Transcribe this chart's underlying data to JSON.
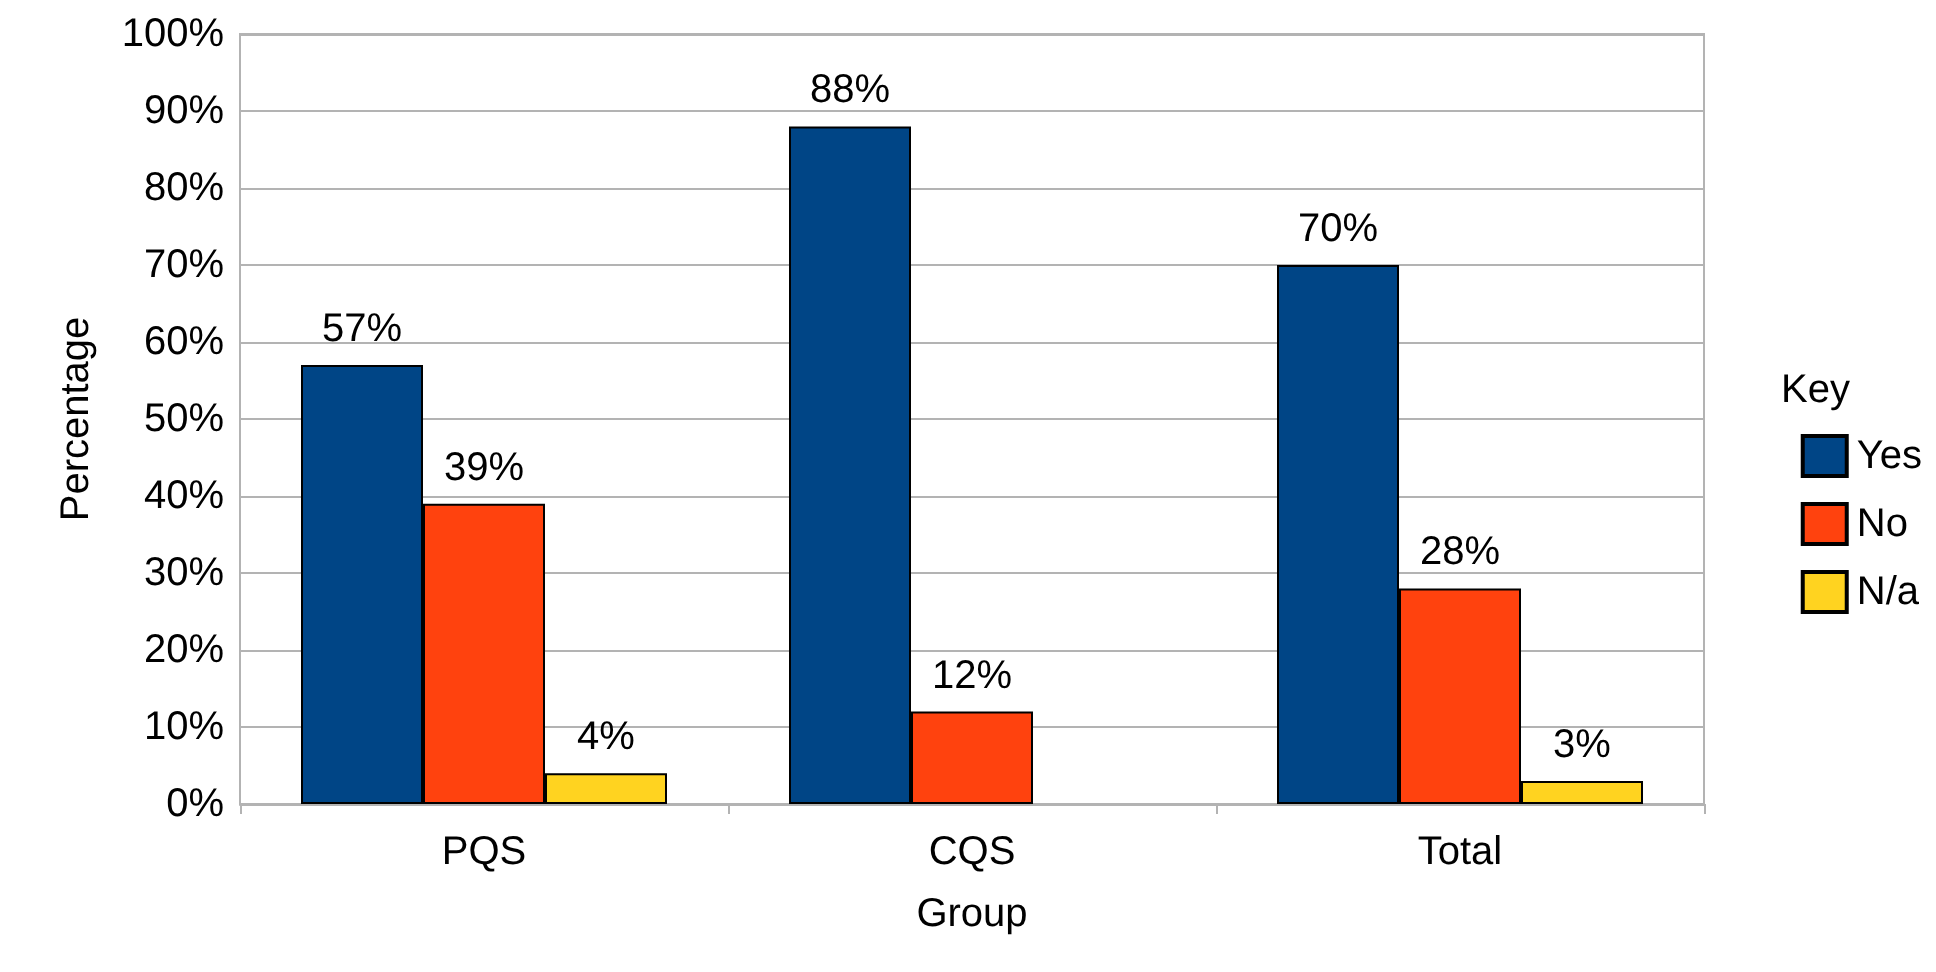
{
  "chart_data": {
    "type": "bar",
    "xlabel": "Group",
    "ylabel": "Percentage",
    "legend_title": "Key",
    "legend": "right",
    "grid": "y",
    "categories": [
      "PQS",
      "CQS",
      "Total"
    ],
    "ylim": [
      0,
      100
    ],
    "yticks": [
      {
        "value": 0,
        "label": "0%"
      },
      {
        "value": 10,
        "label": "10%"
      },
      {
        "value": 20,
        "label": "20%"
      },
      {
        "value": 30,
        "label": "30%"
      },
      {
        "value": 40,
        "label": "40%"
      },
      {
        "value": 50,
        "label": "50%"
      },
      {
        "value": 60,
        "label": "60%"
      },
      {
        "value": 70,
        "label": "70%"
      },
      {
        "value": 80,
        "label": "80%"
      },
      {
        "value": 90,
        "label": "90%"
      },
      {
        "value": 100,
        "label": "100%"
      }
    ],
    "series": [
      {
        "name": "Yes",
        "color": "#004586",
        "values": [
          57,
          88,
          70
        ],
        "value_labels": [
          "57%",
          "88%",
          "70%"
        ]
      },
      {
        "name": "No",
        "color": "#ff420e",
        "values": [
          39,
          12,
          28
        ],
        "value_labels": [
          "39%",
          "12%",
          "28%"
        ]
      },
      {
        "name": "N/a",
        "color": "#ffd320",
        "values": [
          4,
          null,
          3
        ],
        "value_labels": [
          "4%",
          null,
          "3%"
        ]
      }
    ]
  }
}
